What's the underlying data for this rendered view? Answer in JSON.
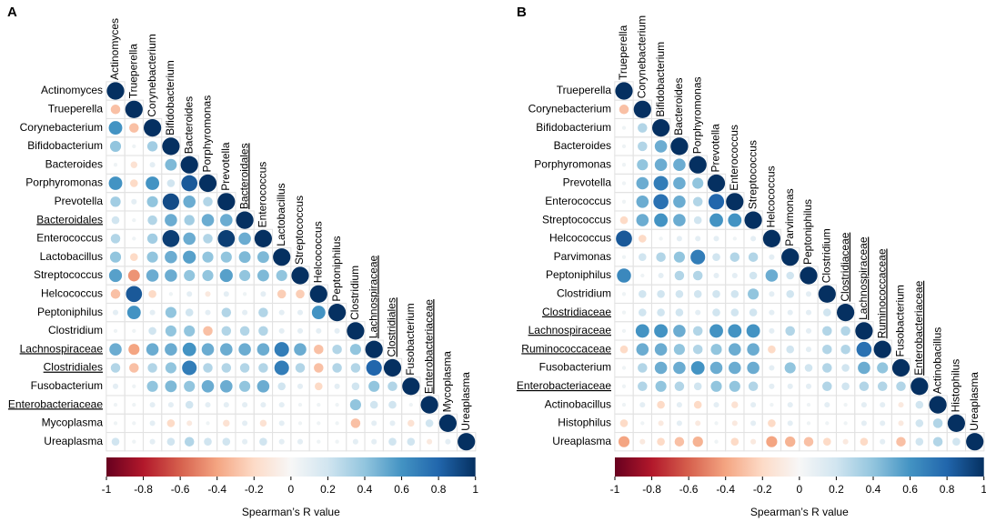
{
  "chart_data": [
    {
      "type": "corrplot",
      "panel": "A",
      "labels": [
        "Actinomyces",
        "Trueperella",
        "Corynebacterium",
        "Bifidobacterium",
        "Bacteroides",
        "Porphyromonas",
        "Prevotella",
        "Bacteroidales",
        "Enterococcus",
        "Lactobacillus",
        "Streptococcus",
        "Helcococcus",
        "Peptoniphilus",
        "Clostridium",
        "Lachnospiraceae",
        "Clostridiales",
        "Fusobacterium",
        "Enterobacteriaceae",
        "Mycoplasma",
        "Ureaplasma"
      ],
      "underlined": [
        false,
        false,
        false,
        false,
        false,
        false,
        false,
        true,
        false,
        false,
        false,
        false,
        false,
        false,
        true,
        true,
        false,
        true,
        false,
        false
      ],
      "matrix": [
        [
          1
        ],
        [
          -0.3,
          1
        ],
        [
          0.6,
          -0.3,
          1
        ],
        [
          0.4,
          0.05,
          0.35,
          1
        ],
        [
          0.05,
          -0.15,
          0.1,
          0.45,
          1
        ],
        [
          0.6,
          -0.2,
          0.6,
          0.2,
          0.85,
          1
        ],
        [
          0.35,
          0.1,
          0.4,
          0.9,
          0.5,
          0.3,
          1
        ],
        [
          0.2,
          0.05,
          0.3,
          0.5,
          0.35,
          0.5,
          0.5,
          1
        ],
        [
          0.3,
          0.05,
          0.35,
          0.95,
          0.5,
          0.3,
          0.95,
          0.5,
          1
        ],
        [
          0.4,
          -0.2,
          0.4,
          0.5,
          0.55,
          0.4,
          0.4,
          0.45,
          0.45,
          1
        ],
        [
          0.55,
          -0.45,
          0.5,
          0.5,
          0.4,
          0.4,
          0.55,
          0.4,
          0.45,
          0.4,
          1
        ],
        [
          -0.3,
          0.85,
          -0.2,
          0.05,
          0.1,
          -0.1,
          0.1,
          0.05,
          0.1,
          -0.25,
          -0.25,
          1
        ],
        [
          0.1,
          0.6,
          0.1,
          0.4,
          0.2,
          0.1,
          0.3,
          0.1,
          0.3,
          0.1,
          0.1,
          0.6,
          1
        ],
        [
          0.05,
          0.05,
          0.2,
          0.4,
          0.4,
          -0.3,
          0.3,
          0.3,
          0.3,
          0.1,
          0.1,
          0.1,
          0.1,
          1
        ],
        [
          0.5,
          -0.4,
          0.5,
          0.5,
          0.6,
          0.5,
          0.5,
          0.5,
          0.5,
          0.7,
          0.5,
          -0.3,
          0.3,
          0.4,
          1
        ],
        [
          0.3,
          -0.3,
          0.3,
          0.4,
          0.7,
          0.3,
          0.3,
          0.3,
          0.3,
          0.7,
          0.3,
          -0.3,
          0.3,
          0.3,
          0.8,
          1
        ],
        [
          0.1,
          0.05,
          0.4,
          0.45,
          0.4,
          0.5,
          0.5,
          0.4,
          0.5,
          0.2,
          0.1,
          -0.2,
          0.1,
          0.2,
          0.4,
          0.3,
          1
        ],
        [
          0.05,
          0.05,
          0.1,
          0.1,
          0.2,
          0.1,
          0.1,
          0.1,
          0.1,
          0.1,
          0.05,
          0.05,
          0.05,
          0.4,
          0.2,
          0.2,
          0.05,
          1
        ],
        [
          0.05,
          0.05,
          0.1,
          -0.2,
          -0.1,
          0.05,
          -0.15,
          0.1,
          -0.15,
          0.1,
          0.05,
          0.05,
          0.05,
          -0.3,
          0.1,
          0.1,
          -0.15,
          0.2,
          1
        ],
        [
          0.2,
          0.05,
          0.1,
          0.2,
          0.3,
          0.2,
          0.2,
          0.1,
          0.2,
          0.1,
          0.1,
          0.05,
          0.05,
          0.1,
          0.1,
          0.2,
          0.2,
          -0.1,
          0.1,
          1
        ]
      ],
      "clim": [
        -1,
        1
      ],
      "cticks": [
        -1,
        -0.8,
        -0.6,
        -0.4,
        -0.2,
        0,
        0.2,
        0.4,
        0.6,
        0.8,
        1
      ],
      "colormap": [
        "#67001f",
        "#b2182b",
        "#d6604d",
        "#f4a582",
        "#fddbc7",
        "#f7f7f7",
        "#d1e5f0",
        "#92c5de",
        "#4393c3",
        "#2166ac",
        "#053061"
      ],
      "colorbar_label": "Spearman’s R value"
    },
    {
      "type": "corrplot",
      "panel": "B",
      "labels": [
        "Trueperella",
        "Corynebacterium",
        "Bifidobacterium",
        "Bacteroides",
        "Porphyromonas",
        "Prevotella",
        "Enterococcus",
        "Streptococcus",
        "Helcococcus",
        "Parvimonas",
        "Peptoniphilus",
        "Clostridium",
        "Clostridiaceae",
        "Lachnospiraceae",
        "Ruminococcaceae",
        "Fusobacterium",
        "Enterobacteriaceae",
        "Actinobacillus",
        "Histophilus",
        "Ureaplasma"
      ],
      "underlined": [
        false,
        false,
        false,
        false,
        false,
        false,
        false,
        false,
        false,
        false,
        false,
        false,
        true,
        true,
        true,
        false,
        true,
        false,
        false,
        false
      ],
      "matrix": [
        [
          1
        ],
        [
          -0.3,
          1
        ],
        [
          0.05,
          0.3,
          1
        ],
        [
          0.05,
          0.3,
          0.5,
          1
        ],
        [
          0.05,
          0.4,
          0.5,
          0.5,
          1
        ],
        [
          0.05,
          0.5,
          0.7,
          0.5,
          0.4,
          1
        ],
        [
          0.05,
          0.5,
          0.75,
          0.5,
          0.3,
          0.8,
          1
        ],
        [
          -0.2,
          0.5,
          0.6,
          0.5,
          0.2,
          0.6,
          0.6,
          1
        ],
        [
          0.85,
          -0.2,
          0.05,
          0.1,
          0.1,
          0.1,
          0.05,
          0.1,
          1
        ],
        [
          0.05,
          0.2,
          0.3,
          0.4,
          0.7,
          0.2,
          0.3,
          0.3,
          0.1,
          1
        ],
        [
          0.65,
          0.05,
          0.1,
          0.3,
          0.3,
          0.1,
          0.1,
          0.2,
          0.5,
          0.2,
          1
        ],
        [
          0.05,
          0.2,
          0.2,
          0.2,
          0.2,
          0.2,
          0.2,
          0.4,
          0.1,
          0.2,
          0.1,
          1
        ],
        [
          0.05,
          0.2,
          0.2,
          0.2,
          0.1,
          0.2,
          0.2,
          0.2,
          0.1,
          0.1,
          0.1,
          0.2,
          1
        ],
        [
          0.05,
          0.6,
          0.6,
          0.5,
          0.3,
          0.6,
          0.6,
          0.6,
          0.1,
          0.3,
          0.1,
          0.3,
          0.3,
          1
        ],
        [
          -0.2,
          0.5,
          0.5,
          0.4,
          0.3,
          0.4,
          0.5,
          0.5,
          -0.2,
          0.2,
          0.1,
          0.3,
          0.3,
          0.75,
          1
        ],
        [
          0.05,
          0.3,
          0.5,
          0.5,
          0.6,
          0.5,
          0.5,
          0.5,
          0.1,
          0.4,
          0.2,
          0.3,
          0.2,
          0.5,
          0.4,
          1
        ],
        [
          0.05,
          0.3,
          0.4,
          0.3,
          0.2,
          0.4,
          0.4,
          0.3,
          0.1,
          0.1,
          0.1,
          0.3,
          0.2,
          0.3,
          0.3,
          0.3,
          1
        ],
        [
          0.05,
          0.1,
          -0.2,
          0.1,
          -0.2,
          0.1,
          -0.15,
          0.1,
          0.05,
          0.1,
          0.05,
          0.1,
          0.05,
          0.1,
          0.1,
          -0.1,
          0.2,
          1
        ],
        [
          -0.2,
          0.05,
          -0.1,
          0.1,
          -0.1,
          0.05,
          -0.1,
          0.1,
          -0.2,
          0.1,
          0.05,
          0.05,
          0.05,
          0.1,
          0.1,
          -0.1,
          0.2,
          0.3,
          1
        ],
        [
          -0.4,
          -0.1,
          -0.2,
          -0.3,
          -0.35,
          0.05,
          -0.2,
          -0.1,
          -0.4,
          -0.35,
          -0.3,
          -0.2,
          -0.1,
          -0.2,
          0.1,
          -0.3,
          0.2,
          0.3,
          0.2,
          1
        ]
      ],
      "clim": [
        -1,
        1
      ],
      "cticks": [
        -1,
        -0.8,
        -0.6,
        -0.4,
        -0.2,
        0,
        0.2,
        0.4,
        0.6,
        0.8,
        1
      ],
      "colormap": [
        "#67001f",
        "#b2182b",
        "#d6604d",
        "#f4a582",
        "#fddbc7",
        "#f7f7f7",
        "#d1e5f0",
        "#92c5de",
        "#4393c3",
        "#2166ac",
        "#053061"
      ],
      "colorbar_label": "Spearman’s R value"
    }
  ]
}
